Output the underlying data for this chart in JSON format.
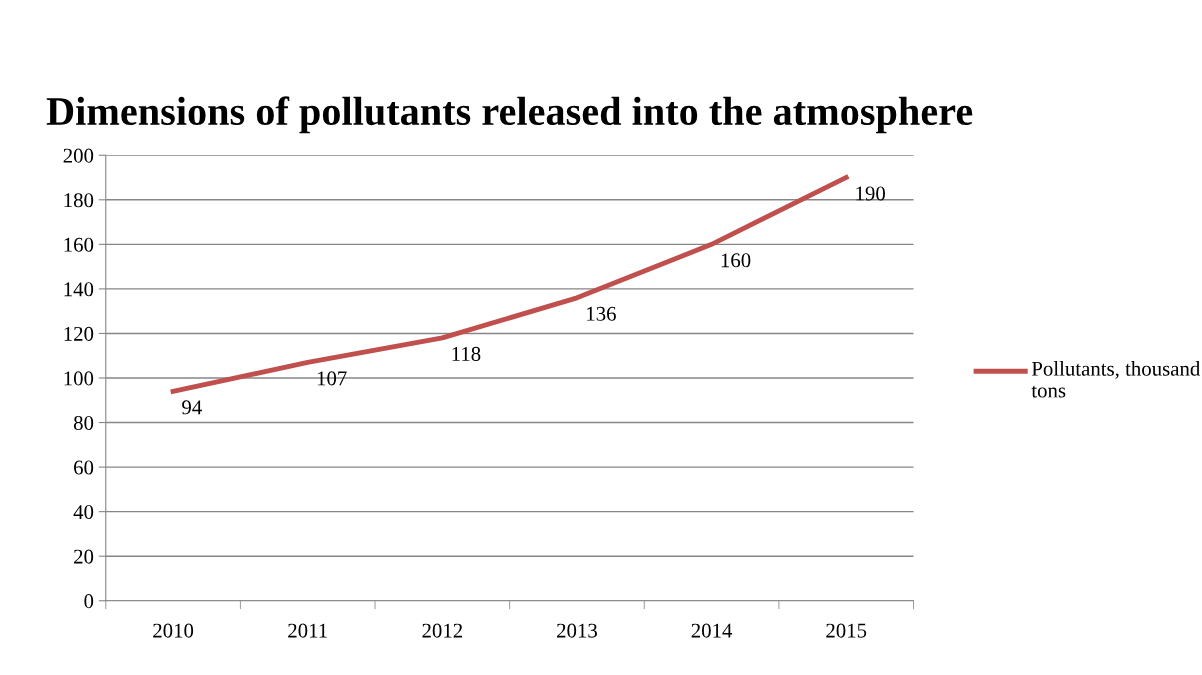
{
  "chart_data": {
    "type": "line",
    "title": "Dimensions of pollutants released into the atmosphere",
    "categories": [
      "2010",
      "2011",
      "2012",
      "2013",
      "2014",
      "2015"
    ],
    "series": [
      {
        "name": "Pollutants, thousand tons",
        "color": "#c0504d",
        "values": [
          94,
          107,
          118,
          136,
          160,
          190
        ]
      }
    ],
    "ylim": [
      0,
      200
    ],
    "yticks": [
      0,
      20,
      40,
      60,
      80,
      100,
      120,
      140,
      160,
      180,
      200
    ],
    "grid": "y",
    "legend": "right",
    "data_labels": true,
    "marker": "none",
    "line_style": "solid"
  }
}
